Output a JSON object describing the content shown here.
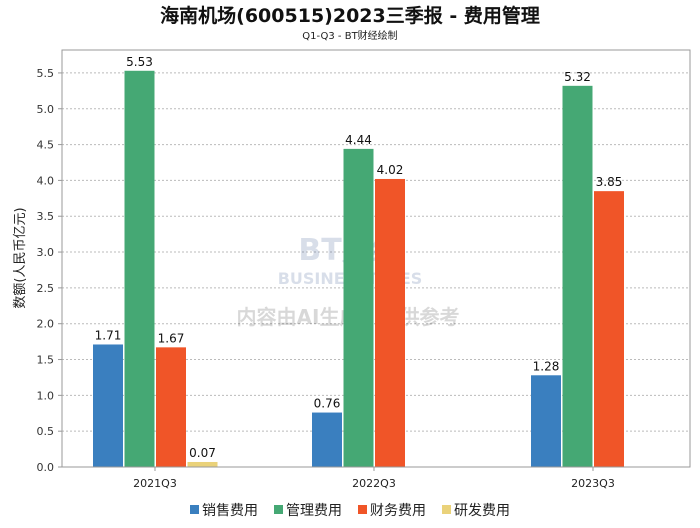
{
  "chart_data": {
    "type": "bar",
    "title": "海南机场(600515)2023三季报 - 费用管理",
    "subtitle": "Q1-Q3 - BT财经绘制",
    "xlabel": "",
    "ylabel": "数额(人民币亿元)",
    "ylim": [
      0,
      5.82
    ],
    "yticks": [
      "0.0",
      "0.5",
      "1.0",
      "1.5",
      "2.0",
      "2.5",
      "3.0",
      "3.5",
      "4.0",
      "4.5",
      "5.0",
      "5.5"
    ],
    "grid": true,
    "legend_position": "bottom",
    "categories": [
      "2021Q3",
      "2022Q3",
      "2023Q3"
    ],
    "series": [
      {
        "name": "销售费用",
        "color": "#3a7fbf",
        "values": [
          1.71,
          0.76,
          1.28
        ],
        "labels": [
          "1.71",
          "0.76",
          "1.28"
        ]
      },
      {
        "name": "管理费用",
        "color": "#45a874",
        "values": [
          5.53,
          4.44,
          5.32
        ],
        "labels": [
          "5.53",
          "4.44",
          "5.32"
        ]
      },
      {
        "name": "财务费用",
        "color": "#f05528",
        "values": [
          1.67,
          4.02,
          3.85
        ],
        "labels": [
          "1.67",
          "4.02",
          "3.85"
        ]
      },
      {
        "name": "研发费用",
        "color": "#ead27a",
        "values": [
          0.07,
          null,
          null
        ],
        "labels": [
          "0.07",
          null,
          null
        ]
      }
    ],
    "watermark": {
      "line1": "BT财经",
      "line2": "BUSINESSTIMES",
      "line3": "内容由AI生成，仅供参考"
    }
  }
}
